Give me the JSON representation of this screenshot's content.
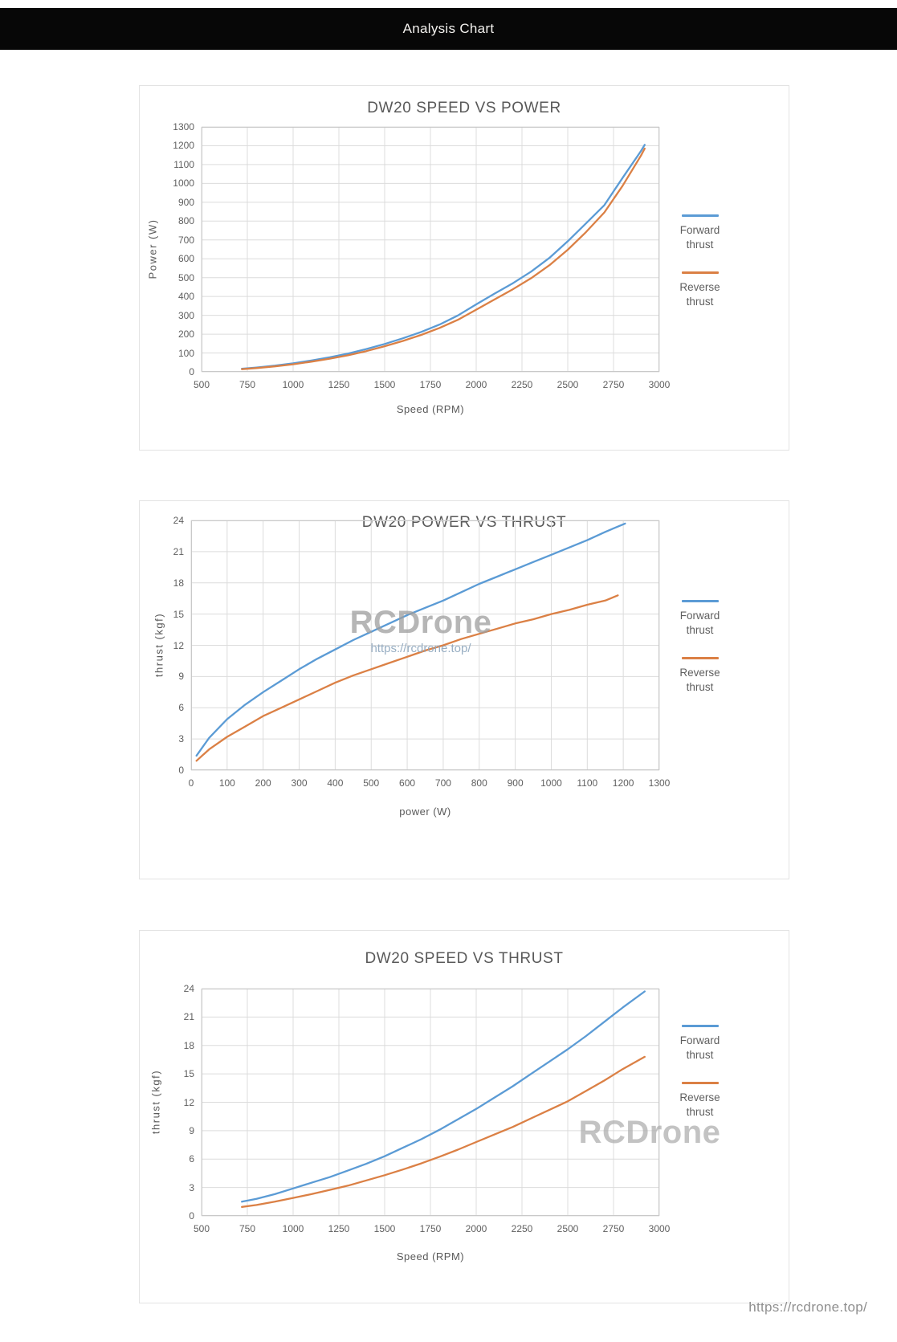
{
  "header": {
    "title": "Analysis Chart"
  },
  "footer": {
    "url": "https://rcdrone.top/"
  },
  "watermark": {
    "brand": "RCDrone",
    "url": "https://rcdrone.top/"
  },
  "legend": {
    "forward_label": "Forward thrust",
    "reverse_label": "Reverse thrust"
  },
  "colors": {
    "forward": "#5B9BD5",
    "reverse": "#DB8045",
    "grid": "#DCDCDC",
    "plot_border": "#C9C9C9",
    "axis_text": "#5F5F5F",
    "title_text": "#595959",
    "watermark_brand": "#9E9E9E",
    "watermark_url": "#8DA6BD",
    "footer_text": "#8F8F8F",
    "header_bg": "#070707"
  },
  "chart_data": [
    {
      "type": "line",
      "title": "DW20 SPEED VS POWER",
      "xlabel": "Speed (RPM)",
      "ylabel": "Power (W)",
      "xlim": [
        500,
        3000
      ],
      "ylim": [
        0,
        1300
      ],
      "xticks": [
        500,
        750,
        1000,
        1250,
        1500,
        1750,
        2000,
        2250,
        2500,
        2750,
        3000
      ],
      "yticks": [
        0,
        100,
        200,
        300,
        400,
        500,
        600,
        700,
        800,
        900,
        1000,
        1100,
        1200,
        1300
      ],
      "grid": true,
      "legend_position": "right",
      "series": [
        {
          "name": "Forward thrust",
          "color_key": "forward",
          "points": [
            [
              720,
              16
            ],
            [
              800,
              23
            ],
            [
              900,
              33
            ],
            [
              1000,
              45
            ],
            [
              1100,
              60
            ],
            [
              1200,
              77
            ],
            [
              1300,
              97
            ],
            [
              1400,
              121
            ],
            [
              1500,
              148
            ],
            [
              1600,
              178
            ],
            [
              1700,
              212
            ],
            [
              1800,
              251
            ],
            [
              1900,
              299
            ],
            [
              2000,
              358
            ],
            [
              2100,
              415
            ],
            [
              2200,
              470
            ],
            [
              2300,
              532
            ],
            [
              2400,
              605
            ],
            [
              2500,
              693
            ],
            [
              2600,
              788
            ],
            [
              2700,
              885
            ],
            [
              2800,
              1030
            ],
            [
              2900,
              1172
            ],
            [
              2920,
              1205
            ]
          ]
        },
        {
          "name": "Reverse thrust",
          "color_key": "reverse",
          "points": [
            [
              720,
              14
            ],
            [
              800,
              20
            ],
            [
              900,
              29
            ],
            [
              1000,
              40
            ],
            [
              1100,
              54
            ],
            [
              1200,
              70
            ],
            [
              1300,
              88
            ],
            [
              1400,
              110
            ],
            [
              1500,
              136
            ],
            [
              1600,
              164
            ],
            [
              1700,
              196
            ],
            [
              1800,
              233
            ],
            [
              1900,
              276
            ],
            [
              2000,
              330
            ],
            [
              2100,
              384
            ],
            [
              2200,
              438
            ],
            [
              2300,
              497
            ],
            [
              2400,
              566
            ],
            [
              2500,
              648
            ],
            [
              2600,
              742
            ],
            [
              2700,
              846
            ],
            [
              2800,
              988
            ],
            [
              2900,
              1148
            ],
            [
              2920,
              1185
            ]
          ]
        }
      ]
    },
    {
      "type": "line",
      "title": "DW20 POWER VS THRUST",
      "xlabel": "power (W)",
      "ylabel": "thrust (kgf)",
      "xlim": [
        0,
        1300
      ],
      "ylim": [
        0,
        24
      ],
      "xticks": [
        0,
        100,
        200,
        300,
        400,
        500,
        600,
        700,
        800,
        900,
        1000,
        1100,
        1200,
        1300
      ],
      "yticks": [
        0,
        3,
        6,
        9,
        12,
        15,
        18,
        21,
        24
      ],
      "grid": true,
      "legend_position": "right",
      "series": [
        {
          "name": "Forward thrust",
          "color_key": "forward",
          "points": [
            [
              15,
              1.4
            ],
            [
              50,
              3.1
            ],
            [
              100,
              4.9
            ],
            [
              150,
              6.3
            ],
            [
              200,
              7.5
            ],
            [
              250,
              8.6
            ],
            [
              300,
              9.7
            ],
            [
              350,
              10.7
            ],
            [
              400,
              11.6
            ],
            [
              450,
              12.5
            ],
            [
              500,
              13.3
            ],
            [
              550,
              14.1
            ],
            [
              600,
              14.9
            ],
            [
              650,
              15.6
            ],
            [
              700,
              16.3
            ],
            [
              750,
              17.1
            ],
            [
              800,
              17.9
            ],
            [
              850,
              18.6
            ],
            [
              900,
              19.3
            ],
            [
              950,
              20.0
            ],
            [
              1000,
              20.7
            ],
            [
              1050,
              21.4
            ],
            [
              1100,
              22.1
            ],
            [
              1150,
              22.9
            ],
            [
              1205,
              23.7
            ]
          ]
        },
        {
          "name": "Reverse thrust",
          "color_key": "reverse",
          "points": [
            [
              15,
              0.9
            ],
            [
              50,
              2.0
            ],
            [
              100,
              3.2
            ],
            [
              150,
              4.2
            ],
            [
              200,
              5.2
            ],
            [
              250,
              6.0
            ],
            [
              300,
              6.8
            ],
            [
              350,
              7.6
            ],
            [
              400,
              8.4
            ],
            [
              450,
              9.1
            ],
            [
              500,
              9.7
            ],
            [
              550,
              10.3
            ],
            [
              600,
              10.9
            ],
            [
              650,
              11.5
            ],
            [
              700,
              12.0
            ],
            [
              750,
              12.6
            ],
            [
              800,
              13.1
            ],
            [
              850,
              13.6
            ],
            [
              900,
              14.1
            ],
            [
              950,
              14.5
            ],
            [
              1000,
              15.0
            ],
            [
              1050,
              15.4
            ],
            [
              1100,
              15.9
            ],
            [
              1150,
              16.3
            ],
            [
              1185,
              16.8
            ]
          ]
        }
      ]
    },
    {
      "type": "line",
      "title": "DW20 SPEED VS THRUST",
      "xlabel": "Speed (RPM)",
      "ylabel": "thrust (kgf)",
      "xlim": [
        500,
        3000
      ],
      "ylim": [
        0,
        24
      ],
      "xticks": [
        500,
        750,
        1000,
        1250,
        1500,
        1750,
        2000,
        2250,
        2500,
        2750,
        3000
      ],
      "yticks": [
        0,
        3,
        6,
        9,
        12,
        15,
        18,
        21,
        24
      ],
      "grid": true,
      "legend_position": "right",
      "series": [
        {
          "name": "Forward thrust",
          "color_key": "forward",
          "points": [
            [
              720,
              1.5
            ],
            [
              800,
              1.8
            ],
            [
              900,
              2.3
            ],
            [
              1000,
              2.9
            ],
            [
              1100,
              3.5
            ],
            [
              1200,
              4.1
            ],
            [
              1300,
              4.8
            ],
            [
              1400,
              5.5
            ],
            [
              1500,
              6.3
            ],
            [
              1600,
              7.2
            ],
            [
              1700,
              8.1
            ],
            [
              1800,
              9.1
            ],
            [
              1900,
              10.2
            ],
            [
              2000,
              11.3
            ],
            [
              2100,
              12.5
            ],
            [
              2200,
              13.7
            ],
            [
              2300,
              15.0
            ],
            [
              2400,
              16.3
            ],
            [
              2500,
              17.6
            ],
            [
              2600,
              19.0
            ],
            [
              2700,
              20.5
            ],
            [
              2800,
              22.0
            ],
            [
              2920,
              23.7
            ]
          ]
        },
        {
          "name": "Reverse thrust",
          "color_key": "reverse",
          "points": [
            [
              720,
              0.95
            ],
            [
              800,
              1.15
            ],
            [
              900,
              1.5
            ],
            [
              1000,
              1.9
            ],
            [
              1100,
              2.3
            ],
            [
              1200,
              2.75
            ],
            [
              1300,
              3.2
            ],
            [
              1400,
              3.75
            ],
            [
              1500,
              4.3
            ],
            [
              1600,
              4.9
            ],
            [
              1700,
              5.55
            ],
            [
              1800,
              6.25
            ],
            [
              1900,
              7.0
            ],
            [
              2000,
              7.8
            ],
            [
              2100,
              8.6
            ],
            [
              2200,
              9.4
            ],
            [
              2300,
              10.3
            ],
            [
              2400,
              11.2
            ],
            [
              2500,
              12.1
            ],
            [
              2600,
              13.2
            ],
            [
              2700,
              14.3
            ],
            [
              2800,
              15.5
            ],
            [
              2920,
              16.8
            ]
          ]
        }
      ]
    }
  ]
}
